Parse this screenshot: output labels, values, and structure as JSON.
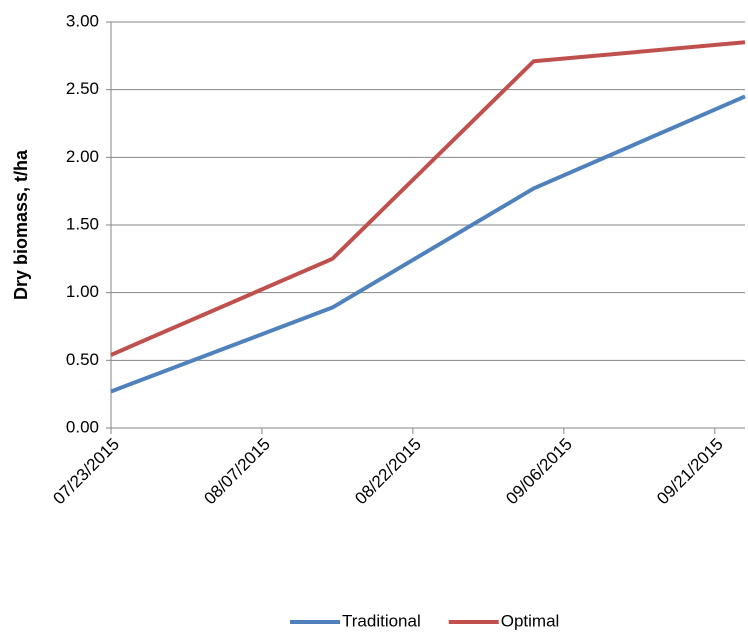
{
  "chart_data": {
    "type": "line",
    "y_label": "Dry biomass, t/ha",
    "x": [
      "07/23/2015",
      "08/14/2015",
      "09/03/2015",
      "09/24/2015"
    ],
    "series": [
      {
        "name": "Traditional",
        "color": "#4f81bd",
        "values": [
          0.27,
          0.89,
          1.77,
          2.45
        ]
      },
      {
        "name": "Optimal",
        "color": "#c0504d",
        "values": [
          0.54,
          1.25,
          2.71,
          2.85
        ]
      }
    ],
    "xlim": [
      "07/23/2015",
      "09/24/2015"
    ],
    "xticks": [
      "07/23/2015",
      "08/07/2015",
      "08/22/2015",
      "09/06/2015",
      "09/21/2015"
    ],
    "ylim": [
      0,
      3
    ],
    "yticks": [
      {
        "value": 0,
        "label": "0.00"
      },
      {
        "value": 0.5,
        "label": "0.50"
      },
      {
        "value": 1,
        "label": "1.00"
      },
      {
        "value": 1.5,
        "label": "1.50"
      },
      {
        "value": 2,
        "label": "2.00"
      },
      {
        "value": 2.5,
        "label": "2.50"
      },
      {
        "value": 3,
        "label": "3.00"
      }
    ],
    "grid": true,
    "legend": "bottom"
  }
}
